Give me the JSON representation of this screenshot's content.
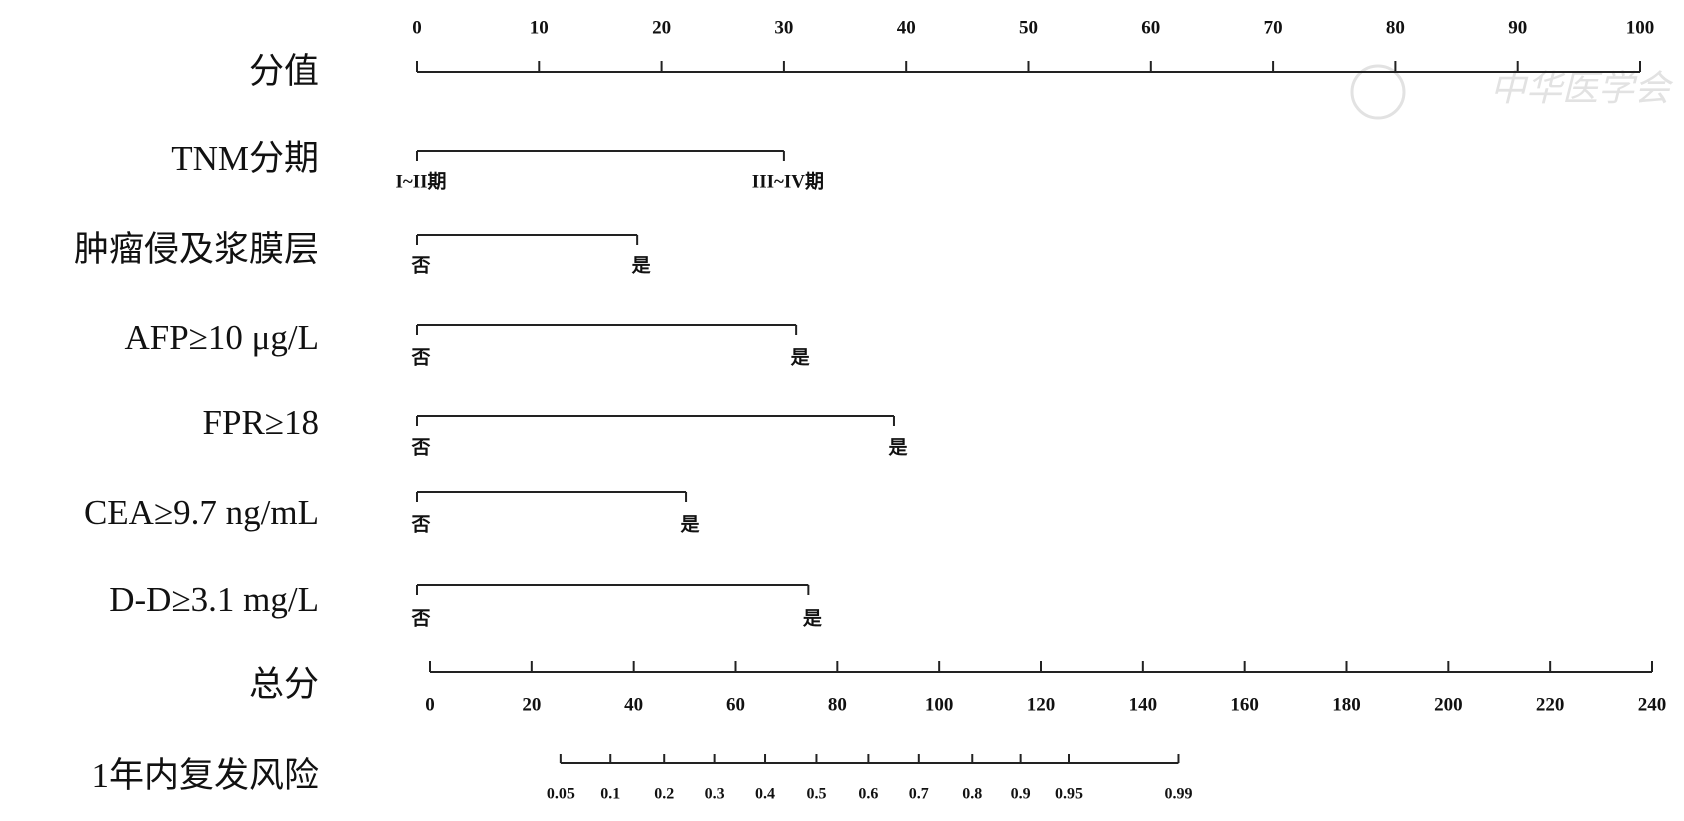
{
  "chart_data": {
    "type": "nomogram",
    "points_axis": {
      "label": "分值",
      "xlim": [
        0,
        100
      ],
      "xticks": [
        0,
        10,
        20,
        30,
        40,
        50,
        60,
        70,
        80,
        90,
        100
      ]
    },
    "predictors": [
      {
        "label": "TNM分期",
        "levels": [
          "I~II期",
          "III~IV期"
        ],
        "points": [
          0,
          30
        ]
      },
      {
        "label": "肿瘤侵及浆膜层",
        "levels": [
          "否",
          "是"
        ],
        "points": [
          0,
          18
        ]
      },
      {
        "label": "AFP≥10 μg/L",
        "levels": [
          "否",
          "是"
        ],
        "points": [
          0,
          31
        ]
      },
      {
        "label": "FPR≥18",
        "levels": [
          "否",
          "是"
        ],
        "points": [
          0,
          39
        ]
      },
      {
        "label": "CEA≥9.7 ng/mL",
        "levels": [
          "否",
          "是"
        ],
        "points": [
          0,
          22
        ]
      },
      {
        "label": "D-D≥3.1 mg/L",
        "levels": [
          "否",
          "是"
        ],
        "points": [
          0,
          32
        ]
      }
    ],
    "total_axis": {
      "label": "总分",
      "xlim": [
        0,
        240
      ],
      "xticks": [
        0,
        20,
        40,
        60,
        80,
        100,
        120,
        140,
        160,
        180,
        200,
        220,
        240
      ]
    },
    "risk_axis": {
      "label": "1年内复发风险",
      "ticks": [
        0.05,
        0.1,
        0.2,
        0.3,
        0.4,
        0.5,
        0.6,
        0.7,
        0.8,
        0.9,
        0.95,
        0.99
      ],
      "total_points": [
        25.7,
        35.4,
        46,
        55.9,
        65.8,
        75.9,
        86.1,
        96,
        106.5,
        116,
        125.5,
        147
      ]
    }
  },
  "watermark": "中华医学会"
}
